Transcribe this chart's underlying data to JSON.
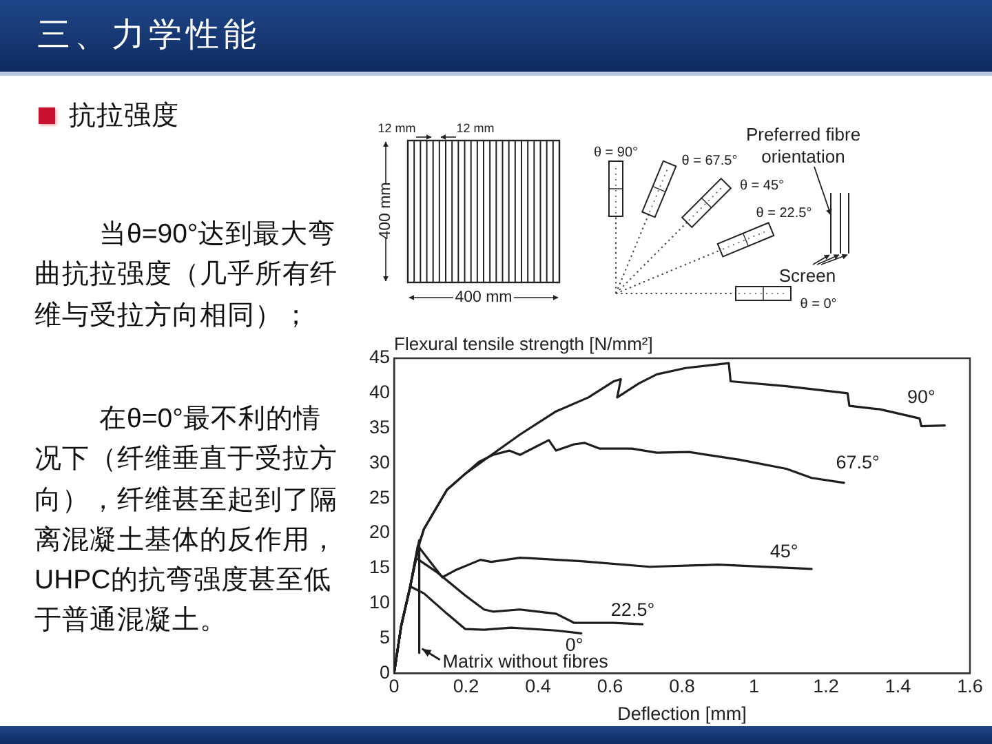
{
  "chart_data": {
    "type": "line",
    "title": "三、力学性能",
    "subtitle": "抗拉强度",
    "xlabel": "Deflection [mm]",
    "ylabel": "Flexural tensile strength [N/mm²]",
    "annotations": [
      "当θ=90°达到最大弯曲抗拉强度（几乎所有纤维与受拉方向相同）；",
      "在θ=0°最不利的情况下（纤维垂直于受拉方向），纤维甚至起到了隔离混凝土基体的反作用，UHPC的抗弯强度甚至低于普通混凝土。",
      "12 mm",
      "12 mm",
      "400 mm",
      "400 mm",
      "θ = 90°",
      "θ = 67.5°",
      "θ = 45°",
      "θ = 22.5°",
      "θ = 0°",
      "Preferred fibre orientation",
      "Screen"
    ],
    "series": [
      {
        "name": "90°",
        "color": "#1e1e1e",
        "x": [
          0,
          0.02,
          0.045,
          0.07,
          0.083,
          0.147,
          0.198,
          0.26,
          0.35,
          0.45,
          0.54,
          0.61,
          0.63,
          0.62,
          0.68,
          0.73,
          0.81,
          0.93,
          0.935,
          1.09,
          1.26,
          1.265,
          1.35,
          1.46,
          1.465,
          1.53
        ],
        "values": [
          0,
          6.8,
          12.4,
          18.5,
          20.6,
          26.2,
          28.5,
          30.8,
          34.1,
          37.4,
          39.4,
          41.7,
          42.0,
          39.4,
          41.4,
          42.7,
          43.6,
          44.3,
          41.7,
          41.0,
          40.0,
          38.2,
          37.7,
          36.4,
          35.3,
          35.4
        ]
      },
      {
        "name": "67.5°",
        "color": "#1e1e1e",
        "x": [
          0,
          0.02,
          0.045,
          0.07,
          0.083,
          0.147,
          0.198,
          0.236,
          0.275,
          0.32,
          0.35,
          0.43,
          0.45,
          0.5,
          0.53,
          0.57,
          0.66,
          0.73,
          0.82,
          0.96,
          1.09,
          1.16,
          1.25
        ],
        "values": [
          0,
          6.8,
          12.4,
          18.5,
          20.6,
          26.2,
          28.5,
          30.2,
          31.2,
          31.8,
          31.2,
          33.3,
          31.8,
          32.7,
          32.9,
          32.1,
          32.1,
          31.5,
          31.6,
          30.5,
          29.2,
          27.9,
          27.2
        ]
      },
      {
        "name": "45°",
        "color": "#1e1e1e",
        "x": [
          0,
          0.02,
          0.045,
          0.066,
          0.134,
          0.17,
          0.24,
          0.27,
          0.35,
          0.52,
          0.71,
          0.9,
          1.16
        ],
        "values": [
          0,
          6.8,
          12.4,
          18.2,
          13.7,
          14.7,
          16.2,
          15.9,
          16.5,
          16.0,
          15.2,
          15.5,
          14.9
        ]
      },
      {
        "name": "22.5°",
        "color": "#1e1e1e",
        "x": [
          0,
          0.02,
          0.045,
          0.06,
          0.12,
          0.198,
          0.25,
          0.275,
          0.35,
          0.45,
          0.5,
          0.61,
          0.69
        ],
        "values": [
          0,
          6.8,
          12.4,
          16.5,
          14.4,
          11.1,
          9.1,
          8.8,
          9.1,
          8.5,
          7.2,
          7.2,
          7.0
        ]
      },
      {
        "name": "0°",
        "color": "#1e1e1e",
        "x": [
          0,
          0.02,
          0.045,
          0.083,
          0.147,
          0.198,
          0.25,
          0.326,
          0.45,
          0.52
        ],
        "values": [
          0,
          6.8,
          12.4,
          11.4,
          8.5,
          6.3,
          6.2,
          6.5,
          6.1,
          5.7
        ]
      },
      {
        "name": "Matrix without fibres",
        "color": "#1e1e1e",
        "x": [
          0,
          0.02,
          0.045,
          0.07,
          0.07
        ],
        "values": [
          0,
          6.8,
          12.4,
          19.0,
          2.9
        ]
      }
    ],
    "xlim": [
      0,
      1.6
    ],
    "xticks": [
      0,
      0.2,
      0.4,
      0.6,
      0.8,
      1,
      1.2,
      1.4,
      1.6
    ],
    "ylim": [
      0,
      45
    ],
    "yticks": [
      0,
      5,
      10,
      15,
      20,
      25,
      30,
      35,
      40,
      45
    ],
    "grid": false,
    "line_style": "solid"
  }
}
